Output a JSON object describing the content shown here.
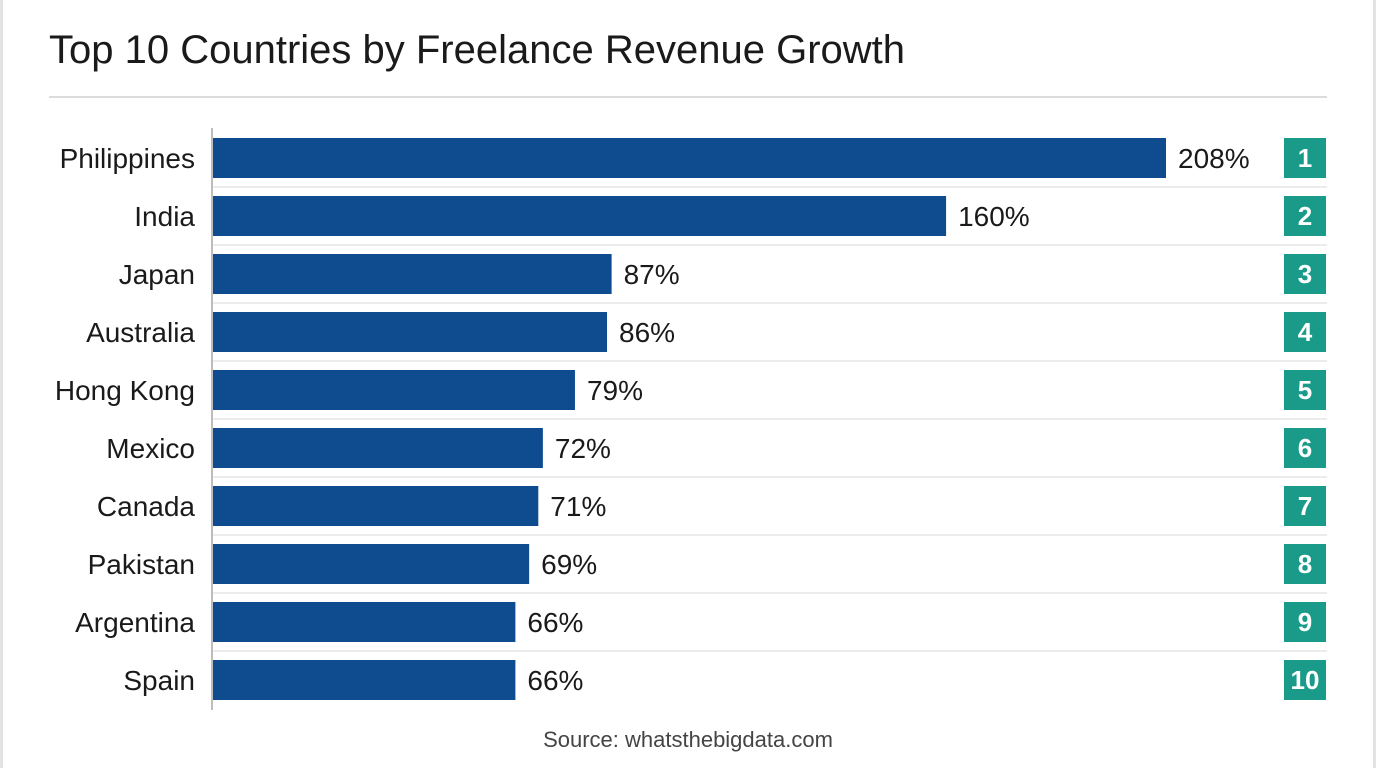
{
  "chart_data": {
    "type": "bar",
    "orientation": "horizontal",
    "title": "Top 10 Countries by Freelance Revenue Growth",
    "categories": [
      "Philippines",
      "India",
      "Japan",
      "Australia",
      "Hong Kong",
      "Mexico",
      "Canada",
      "Pakistan",
      "Argentina",
      "Spain"
    ],
    "values": [
      208,
      160,
      87,
      86,
      79,
      72,
      71,
      69,
      66,
      66
    ],
    "value_labels": [
      "208%",
      "160%",
      "87%",
      "86%",
      "79%",
      "72%",
      "71%",
      "69%",
      "66%",
      "66%"
    ],
    "ranks": [
      "1",
      "2",
      "3",
      "4",
      "5",
      "6",
      "7",
      "8",
      "9",
      "10"
    ],
    "xlabel": "",
    "ylabel": "",
    "xlim": [
      0,
      208
    ],
    "grid": false,
    "legend": "none",
    "source": "Source: whatsthebigdata.com"
  },
  "colors": {
    "bar": "#0f4c8f",
    "rank_badge": "#1a9b8a",
    "rank_text": "#ffffff",
    "label_text": "#1a1a1a",
    "row_divider": "#d9d9d9",
    "axis": "#bdbdbd"
  }
}
